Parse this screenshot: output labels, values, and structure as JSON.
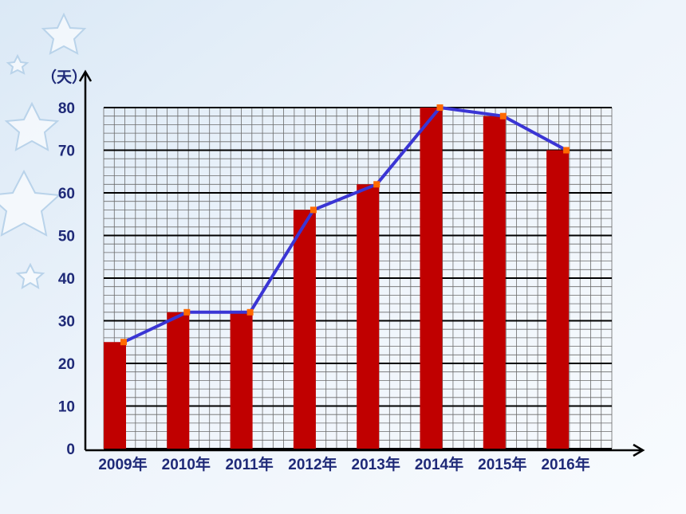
{
  "chart_data": {
    "type": "bar",
    "y_label": "（天）",
    "categories": [
      "2009年",
      "2010年",
      "2011年",
      "2012年",
      "2013年",
      "2014年",
      "2015年",
      "2016年"
    ],
    "values": [
      25,
      32,
      32,
      56,
      62,
      80,
      78,
      70
    ],
    "color": "#c00000",
    "line_color": "#3a35d4",
    "marker_color": "#ff6a00",
    "ylim": [
      0,
      80
    ],
    "yticks": [
      0,
      10,
      20,
      30,
      40,
      50,
      60,
      70,
      80
    ],
    "grid": true
  }
}
